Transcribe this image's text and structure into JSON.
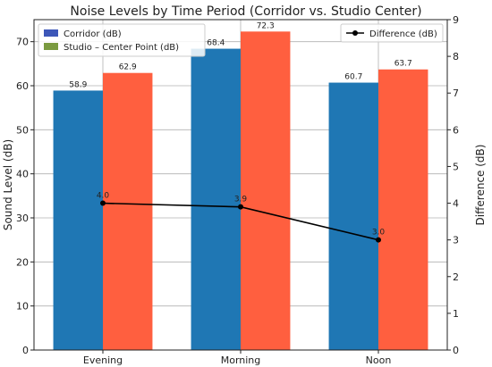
{
  "chart_data": {
    "type": "bar",
    "title": "Noise Levels by Time Period (Corridor vs. Studio Center)",
    "categories": [
      "Evening",
      "Morning",
      "Noon"
    ],
    "ylabel": "Sound Level (dB)",
    "ylabel_right": "Difference (dB)",
    "ylim": [
      0,
      75
    ],
    "yticks": [
      0,
      10,
      20,
      30,
      40,
      50,
      60,
      70
    ],
    "ylim_right": [
      0,
      9
    ],
    "yticks_right": [
      0,
      1,
      2,
      3,
      4,
      5,
      6,
      7,
      8,
      9
    ],
    "grid": true,
    "series": [
      {
        "name": "Corridor (dB)",
        "values": [
          58.9,
          68.4,
          60.7
        ],
        "labels": [
          "58.9",
          "68.4",
          "60.7"
        ],
        "color": "#1f77b4"
      },
      {
        "name": "Studio – Center Point (dB)",
        "values": [
          62.9,
          72.3,
          63.7
        ],
        "labels": [
          "62.9",
          "72.3",
          "63.7"
        ],
        "color": "#ff5f3f"
      }
    ],
    "line_series": {
      "name": "Difference (dB)",
      "values": [
        4.0,
        3.9,
        3.0
      ],
      "labels": [
        "4.0",
        "3.9",
        "3.0"
      ],
      "color": "#000000",
      "axis": "right"
    },
    "legend_left_placement": "top-left",
    "legend_right_placement": "top-right",
    "legend_left_swatch_colors": [
      "#3d57b8",
      "#7a9a40"
    ]
  }
}
